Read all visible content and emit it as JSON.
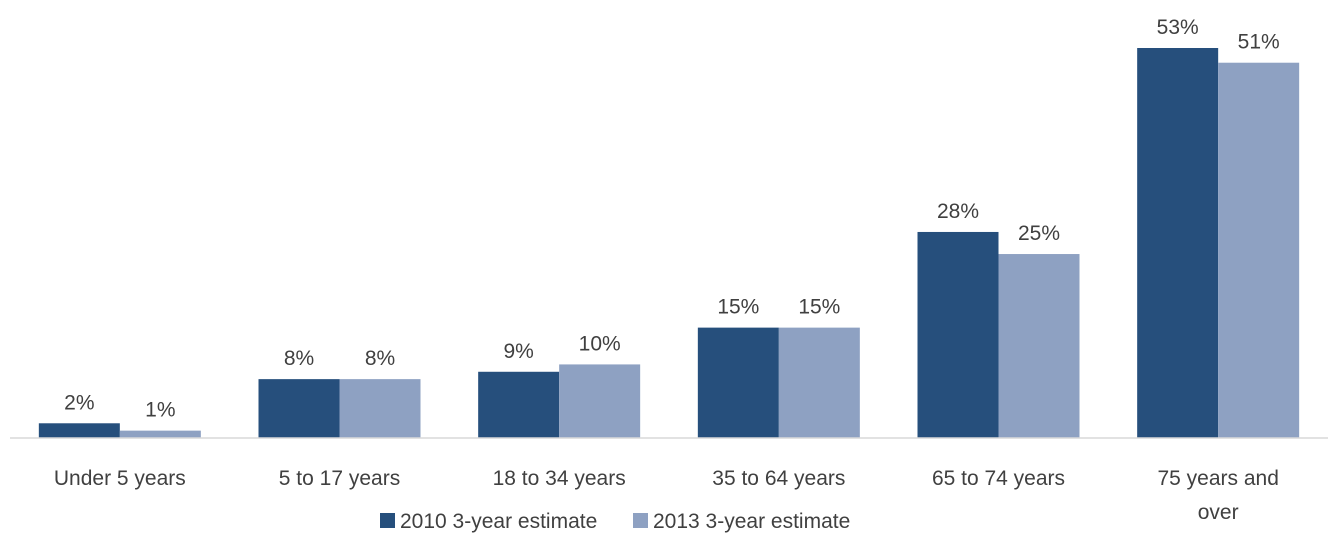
{
  "chart_data": {
    "type": "bar",
    "title": "",
    "xlabel": "",
    "ylabel": "",
    "categories": [
      "Under 5 years",
      "5 to 17 years",
      "18 to 34 years",
      "35 to 64 years",
      "65 to 74 years",
      "75 years and over"
    ],
    "series": [
      {
        "name": "2010 3-year estimate",
        "color": "#264f7c",
        "values": [
          2,
          8,
          9,
          15,
          28,
          53
        ],
        "labels": [
          "2%",
          "8%",
          "9%",
          "15%",
          "28%",
          "53%"
        ]
      },
      {
        "name": "2013 3-year estimate",
        "color": "#8ea1c2",
        "values": [
          1,
          8,
          10,
          15,
          25,
          51
        ],
        "labels": [
          "1%",
          "8%",
          "10%",
          "15%",
          "25%",
          "51%"
        ]
      }
    ],
    "ylim": [
      0,
      53
    ],
    "grid": false,
    "legend": "bottom-center",
    "data_labels": true
  }
}
